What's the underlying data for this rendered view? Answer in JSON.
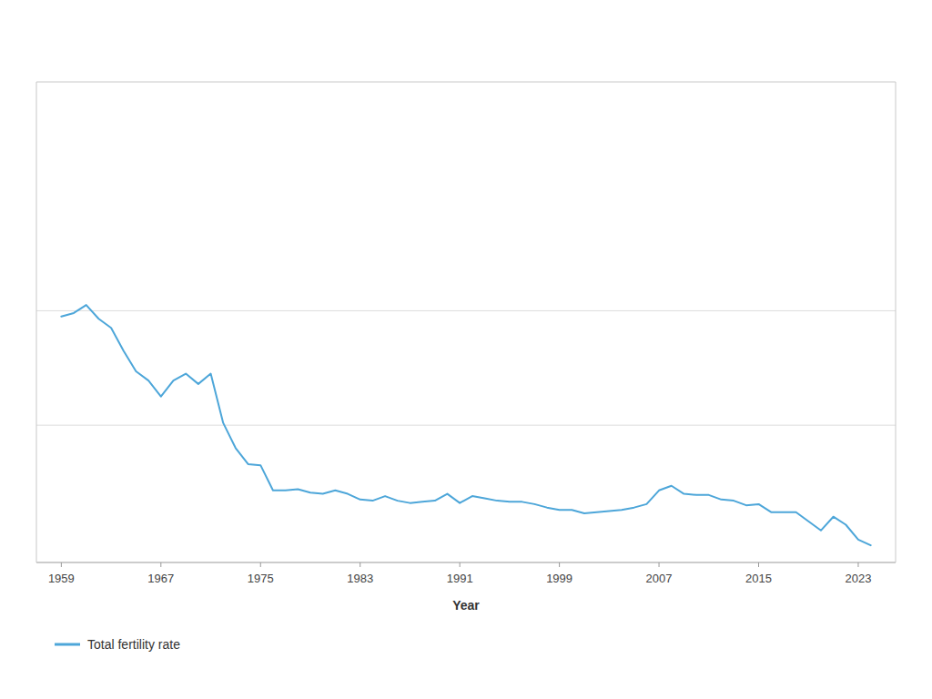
{
  "chart_data": {
    "type": "line",
    "x_label": "Year",
    "x": [
      1959,
      1960,
      1961,
      1962,
      1963,
      1964,
      1965,
      1966,
      1967,
      1968,
      1969,
      1970,
      1971,
      1972,
      1973,
      1974,
      1975,
      1976,
      1977,
      1978,
      1979,
      1980,
      1981,
      1982,
      1983,
      1984,
      1985,
      1986,
      1987,
      1988,
      1989,
      1990,
      1991,
      1992,
      1993,
      1994,
      1995,
      1996,
      1997,
      1998,
      1999,
      2000,
      2001,
      2002,
      2003,
      2004,
      2005,
      2006,
      2007,
      2008,
      2009,
      2010,
      2011,
      2012,
      2013,
      2014,
      2015,
      2016,
      2017,
      2018,
      2019,
      2020,
      2021,
      2022,
      2023,
      2024
    ],
    "series": [
      {
        "name": "Total fertility rate",
        "color": "#4da6d9",
        "values": [
          3.45,
          3.48,
          3.55,
          3.43,
          3.35,
          3.15,
          2.97,
          2.89,
          2.75,
          2.89,
          2.95,
          2.86,
          2.95,
          2.52,
          2.3,
          2.16,
          2.15,
          1.93,
          1.93,
          1.94,
          1.91,
          1.9,
          1.93,
          1.9,
          1.85,
          1.84,
          1.88,
          1.84,
          1.82,
          1.83,
          1.84,
          1.9,
          1.82,
          1.88,
          1.86,
          1.84,
          1.83,
          1.83,
          1.81,
          1.78,
          1.76,
          1.76,
          1.73,
          1.74,
          1.75,
          1.76,
          1.78,
          1.81,
          1.93,
          1.97,
          1.9,
          1.89,
          1.89,
          1.85,
          1.84,
          1.8,
          1.81,
          1.74,
          1.74,
          1.74,
          1.66,
          1.58,
          1.7,
          1.63,
          1.5,
          1.45
        ]
      }
    ],
    "xlim": [
      1957,
      2026
    ],
    "xticks": [
      1959,
      1967,
      1975,
      1983,
      1991,
      1999,
      2007,
      2015,
      2023
    ],
    "ylim": [
      1.3,
      5.5
    ],
    "yticks": [
      2.5,
      3.5
    ],
    "grid": true,
    "tick_labels": "x",
    "legend": "lower left"
  }
}
